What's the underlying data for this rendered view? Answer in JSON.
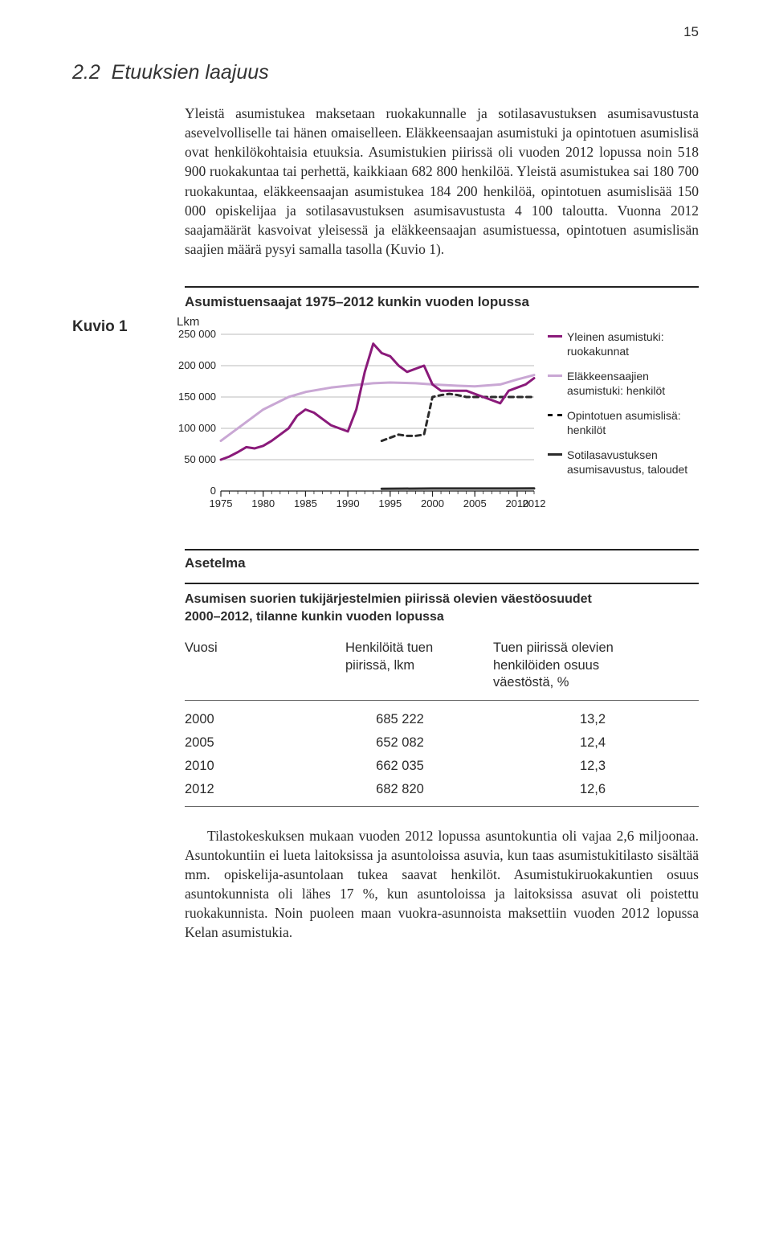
{
  "page_number": "15",
  "section": {
    "number": "2.2",
    "title": "Etuuksien laajuus"
  },
  "body_paragraph": "Yleistä asumistukea maksetaan ruokakunnalle ja sotilasavustuksen asumisavustusta asevelvolliselle tai hänen omaiselleen. Eläkkeensaajan asumistuki ja opintotuen asumislisä ovat henkilökohtaisia etuuksia. Asumistukien piirissä oli vuoden 2012 lopussa noin 518 900 ruokakuntaa tai perhettä, kaikkiaan 682 800 henkilöä. Yleistä asumistukea sai 180 700 ruokakuntaa, eläkkeensaajan asumistukea 184 200 henkilöä, opintotuen asumislisää 150 000 opiskelijaa ja sotilasavustuksen asumisavustusta 4 100 taloutta. Vuonna 2012 saajamäärät kasvoivat yleisessä ja eläkkeensaajan asumistuessa, opintotuen asumislisän saajien määrä pysyi samalla tasolla (Kuvio 1).",
  "figure": {
    "label": "Kuvio 1",
    "caption": "Asumistuensaajat 1975–2012 kunkin vuoden lopussa",
    "y_label": "Lkm",
    "type": "line",
    "background_color": "#ffffff",
    "grid_color": "#cccccc",
    "xlim": [
      1975,
      2012
    ],
    "ylim": [
      0,
      250000
    ],
    "x_ticks": [
      "1975",
      "1980",
      "1985",
      "1990",
      "1995",
      "2000",
      "2005",
      "2010 2012"
    ],
    "y_ticks": [
      "250 000",
      "200 000",
      "150 000",
      "100 000",
      "50 000",
      "0"
    ],
    "series": {
      "yleinen": {
        "label_lines": [
          "Yleinen asumistuki:",
          "ruokakunnat"
        ],
        "color": "#8a1a7a",
        "width": 3,
        "dash": "none",
        "values": [
          [
            1975,
            50000
          ],
          [
            1976,
            55000
          ],
          [
            1977,
            62000
          ],
          [
            1978,
            70000
          ],
          [
            1979,
            68000
          ],
          [
            1980,
            72000
          ],
          [
            1981,
            80000
          ],
          [
            1982,
            90000
          ],
          [
            1983,
            100000
          ],
          [
            1984,
            120000
          ],
          [
            1985,
            130000
          ],
          [
            1986,
            125000
          ],
          [
            1987,
            115000
          ],
          [
            1988,
            105000
          ],
          [
            1989,
            100000
          ],
          [
            1990,
            95000
          ],
          [
            1991,
            130000
          ],
          [
            1992,
            190000
          ],
          [
            1993,
            235000
          ],
          [
            1994,
            220000
          ],
          [
            1995,
            215000
          ],
          [
            1996,
            200000
          ],
          [
            1997,
            190000
          ],
          [
            1998,
            195000
          ],
          [
            1999,
            200000
          ],
          [
            2000,
            170000
          ],
          [
            2001,
            160000
          ],
          [
            2002,
            160000
          ],
          [
            2003,
            160000
          ],
          [
            2004,
            160000
          ],
          [
            2005,
            155000
          ],
          [
            2006,
            150000
          ],
          [
            2007,
            145000
          ],
          [
            2008,
            140000
          ],
          [
            2009,
            160000
          ],
          [
            2010,
            165000
          ],
          [
            2011,
            170000
          ],
          [
            2012,
            180000
          ]
        ]
      },
      "elakkeensaajat": {
        "label_lines": [
          "Eläkkeensaajien",
          "asumistuki: henkilöt"
        ],
        "color": "#c9a7d4",
        "width": 3,
        "dash": "none",
        "values": [
          [
            1975,
            80000
          ],
          [
            1978,
            110000
          ],
          [
            1980,
            130000
          ],
          [
            1983,
            150000
          ],
          [
            1985,
            158000
          ],
          [
            1988,
            165000
          ],
          [
            1990,
            168000
          ],
          [
            1993,
            172000
          ],
          [
            1995,
            173000
          ],
          [
            1998,
            172000
          ],
          [
            2000,
            170000
          ],
          [
            2003,
            168000
          ],
          [
            2005,
            167000
          ],
          [
            2008,
            170000
          ],
          [
            2010,
            178000
          ],
          [
            2012,
            185000
          ]
        ]
      },
      "opintotuki": {
        "label_lines": [
          "Opintotuen asumislisä:",
          "henkilöt"
        ],
        "color": "#2b2b2b",
        "width": 3,
        "dash": "6,5",
        "values": [
          [
            1994,
            80000
          ],
          [
            1995,
            85000
          ],
          [
            1996,
            90000
          ],
          [
            1997,
            88000
          ],
          [
            1998,
            88000
          ],
          [
            1999,
            90000
          ],
          [
            2000,
            150000
          ],
          [
            2001,
            153000
          ],
          [
            2002,
            155000
          ],
          [
            2003,
            153000
          ],
          [
            2004,
            150000
          ],
          [
            2005,
            150000
          ],
          [
            2006,
            150000
          ],
          [
            2007,
            150000
          ],
          [
            2008,
            150000
          ],
          [
            2009,
            150000
          ],
          [
            2010,
            150000
          ],
          [
            2011,
            150000
          ],
          [
            2012,
            150000
          ]
        ]
      },
      "sotilas": {
        "label_lines": [
          "Sotilasavustuksen",
          "asumisavustus, taloudet"
        ],
        "color": "#2b2b2b",
        "width": 3,
        "dash": "none",
        "values": [
          [
            1994,
            3500
          ],
          [
            2000,
            4000
          ],
          [
            2005,
            4000
          ],
          [
            2012,
            4100
          ]
        ]
      }
    }
  },
  "asetelma": {
    "heading": "Asetelma",
    "title_lines": [
      "Asumisen suorien tukijärjestelmien piirissä olevien väestöosuudet",
      "2000–2012, tilanne kunkin vuoden lopussa"
    ],
    "columns": [
      "Vuosi",
      "Henkilöitä tuen\npiirissä, lkm",
      "Tuen piirissä olevien\nhenkilöiden osuus\nväestöstä, %"
    ],
    "rows": [
      [
        "2000",
        "685 222",
        "13,2"
      ],
      [
        "2005",
        "652 082",
        "12,4"
      ],
      [
        "2010",
        "662 035",
        "12,3"
      ],
      [
        "2012",
        "682 820",
        "12,6"
      ]
    ]
  },
  "trailing_paragraph": "Tilastokeskuksen mukaan vuoden 2012 lopussa asuntokuntia oli vajaa 2,6 miljoonaa. Asuntokuntiin ei lueta laitoksissa ja asuntoloissa asuvia, kun taas asumistukitilasto sisältää mm. opiskelija-asuntolaan tukea saavat henkilöt. Asumistukiruokakuntien osuus asuntokunnista oli lähes 17 %, kun asuntoloissa ja laitoksissa asuvat oli poistettu ruokakunnista. Noin puoleen maan vuokra-asunnoista maksettiin vuoden 2012 lopussa Kelan asumistukia."
}
